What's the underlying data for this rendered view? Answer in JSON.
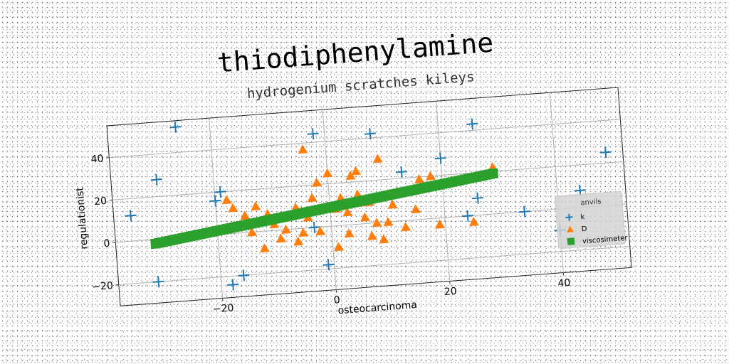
{
  "chart_data": {
    "type": "scatter",
    "title": "thiodiphenylamine",
    "subtitle": "hydrogenium scratches kileys",
    "xlabel": "osteocarcinoma",
    "ylabel": "regulationist",
    "xlim": [
      -38,
      52
    ],
    "ylim": [
      -30,
      55
    ],
    "xticks": [
      -20,
      0,
      20,
      40
    ],
    "xtick_labels": [
      "−20",
      "0",
      "20",
      "40"
    ],
    "yticks": [
      -20,
      0,
      20,
      40
    ],
    "ytick_labels": [
      "−20",
      "0",
      "20",
      "40"
    ],
    "grid": true,
    "legend": {
      "title": "anvils",
      "placement": "bottom-right"
    },
    "colors": {
      "k": "#1f77b4",
      "D": "#ff7f0e",
      "viscosimeter": "#2ca02c"
    },
    "series": [
      {
        "name": "k",
        "marker": "plus",
        "points": [
          [
            -26,
            52
          ],
          [
            -30,
            28
          ],
          [
            -35,
            12
          ],
          [
            -31,
            -20
          ],
          [
            -19,
            20
          ],
          [
            -20,
            16
          ],
          [
            -18,
            -24
          ],
          [
            -16,
            -20
          ],
          [
            -2,
            44
          ],
          [
            8,
            42
          ],
          [
            13,
            23
          ],
          [
            20,
            28
          ],
          [
            26,
            43
          ],
          [
            -3,
            0
          ],
          [
            -1,
            -18
          ],
          [
            24,
            0
          ],
          [
            26,
            8
          ],
          [
            34,
            0
          ],
          [
            40,
            -10
          ],
          [
            44,
            8
          ],
          [
            49,
            25
          ]
        ]
      },
      {
        "name": "D",
        "marker": "triangle",
        "points": [
          [
            -4,
            37
          ],
          [
            9,
            30
          ],
          [
            0,
            25
          ],
          [
            4,
            23
          ],
          [
            5,
            25
          ],
          [
            -2,
            21
          ],
          [
            16,
            19
          ],
          [
            -18,
            16
          ],
          [
            -17,
            12
          ],
          [
            -13,
            12
          ],
          [
            -11,
            8
          ],
          [
            -15,
            8
          ],
          [
            -3,
            14
          ],
          [
            2,
            13
          ],
          [
            5,
            14
          ],
          [
            7,
            10
          ],
          [
            -6,
            10
          ],
          [
            -5,
            8
          ],
          [
            -4,
            5
          ],
          [
            1,
            8
          ],
          [
            3,
            6
          ],
          [
            6,
            3
          ],
          [
            8,
            0
          ],
          [
            10,
            0
          ],
          [
            -8,
            0
          ],
          [
            -9,
            -4
          ],
          [
            -6,
            -6
          ],
          [
            -5,
            -2
          ],
          [
            -2,
            -2
          ],
          [
            3,
            -4
          ],
          [
            7,
            -6
          ],
          [
            9,
            -8
          ],
          [
            13,
            -3
          ],
          [
            19,
            -3
          ],
          [
            25,
            -3
          ],
          [
            1,
            -10
          ],
          [
            -12,
            -8
          ],
          [
            -10,
            3
          ],
          [
            -14,
            0
          ],
          [
            11,
            8
          ],
          [
            12,
            14
          ],
          [
            18,
            20
          ],
          [
            15,
            5
          ],
          [
            6,
            10
          ],
          [
            29,
            22
          ]
        ]
      },
      {
        "name": "viscosimeter",
        "marker": "square",
        "x_start": -31,
        "x_end": 29,
        "y_start": -2,
        "y_end": 19,
        "count": 100
      }
    ]
  }
}
